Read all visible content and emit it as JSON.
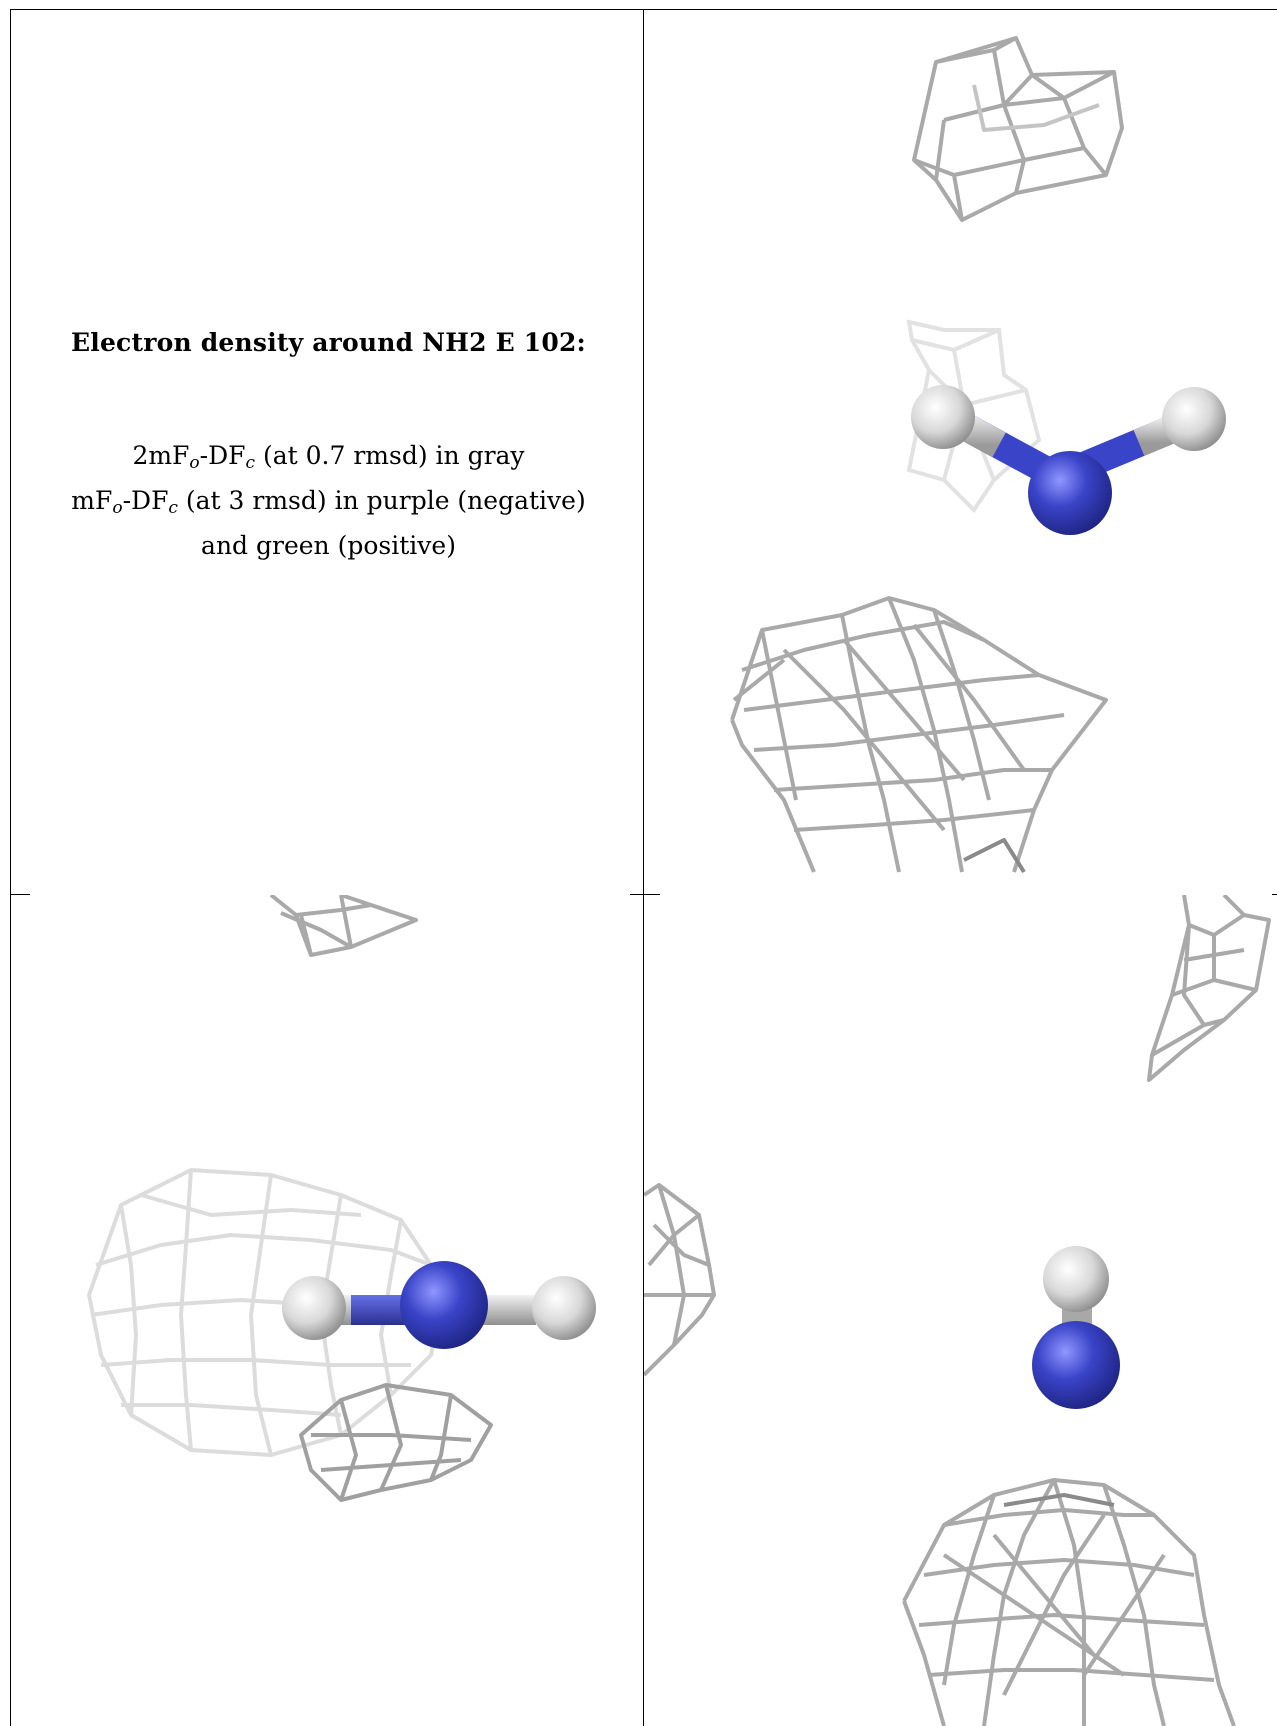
{
  "caption": {
    "title": "Electron density around NH2 E 102:",
    "line1_prefix": "2mF",
    "line1_sub_o": "o",
    "line1_mid": "-DF",
    "line1_sub_c": "c",
    "line1_suffix": " (at 0.7 rmsd) in gray",
    "line2_prefix": "mF",
    "line2_sub_o": "o",
    "line2_mid": "-DF",
    "line2_sub_c": "c",
    "line2_suffix": " (at 3 rmsd) in purple (negative)",
    "line3": "and green (positive)"
  },
  "colors": {
    "mesh_gray": "#a9a9a9",
    "mesh_light": "#d9d9d9",
    "nitrogen": "#3a44c8",
    "hydrogen": "#d8d8d8",
    "background": "#ffffff"
  },
  "panels": [
    {
      "name": "view-top-right",
      "atoms": [
        "N",
        "H",
        "H"
      ]
    },
    {
      "name": "view-bottom-left",
      "atoms": [
        "H",
        "N",
        "H"
      ]
    },
    {
      "name": "view-bottom-right",
      "atoms": [
        "H",
        "N"
      ]
    }
  ]
}
